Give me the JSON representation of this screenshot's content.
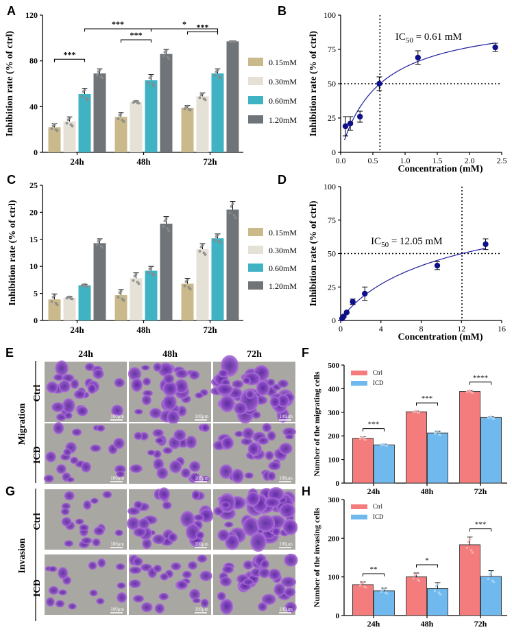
{
  "panels": {
    "A": "A",
    "B": "B",
    "C": "C",
    "D": "D",
    "E": "E",
    "F": "F",
    "G": "G",
    "H": "H"
  },
  "colors": {
    "c015": "#c9b98b",
    "c030": "#e6e1d6",
    "c060": "#3fb3c4",
    "c120": "#6f7478",
    "ctrl": "#f47c7c",
    "icd": "#6fb9ee",
    "curve": "#1a1a9c",
    "point": "#10108a"
  },
  "chart_data": [
    {
      "id": "A",
      "type": "bar",
      "ylabel": "Inhibition rate (% of ctrl)",
      "ylim": [
        0,
        120
      ],
      "yticks": [
        0,
        40,
        80,
        120
      ],
      "categories": [
        "24h",
        "48h",
        "72h"
      ],
      "series": [
        {
          "name": "0.15mM",
          "values": [
            22,
            31,
            39
          ],
          "err": [
            3,
            4,
            2
          ]
        },
        {
          "name": "0.30mM",
          "values": [
            27,
            44,
            49
          ],
          "err": [
            4,
            1,
            3
          ]
        },
        {
          "name": "0.60mM",
          "values": [
            51,
            63,
            69
          ],
          "err": [
            5,
            5,
            4
          ]
        },
        {
          "name": "1.20mM",
          "values": [
            69,
            86,
            97
          ],
          "err": [
            4,
            4,
            0
          ]
        }
      ],
      "sig": [
        {
          "level": 0,
          "a": [
            0,
            0
          ],
          "b": [
            0,
            2
          ],
          "label": "***"
        },
        {
          "level": 0,
          "a": [
            1,
            0
          ],
          "b": [
            1,
            2
          ],
          "label": "***"
        },
        {
          "level": 0,
          "a": [
            2,
            0
          ],
          "b": [
            2,
            2
          ],
          "label": "***"
        },
        {
          "level": 1,
          "a": [
            0,
            2
          ],
          "b": [
            1,
            2
          ],
          "label": "***"
        },
        {
          "level": 1,
          "a": [
            1,
            2
          ],
          "b": [
            2,
            2
          ],
          "label": "*"
        }
      ]
    },
    {
      "id": "B",
      "type": "scatter",
      "xlabel": "Concentration (mM)",
      "ylabel": "Inhibition rate (% of ctrl)",
      "xlim": [
        0,
        2.5
      ],
      "ylim": [
        0,
        100
      ],
      "xticks": [
        0.0,
        0.5,
        1.0,
        1.5,
        2.0,
        2.5
      ],
      "yticks": [
        0,
        25,
        50,
        75,
        100
      ],
      "x": [
        0.075,
        0.15,
        0.3,
        0.6,
        1.2,
        2.4
      ],
      "y": [
        19,
        21,
        26,
        50,
        69,
        76.5
      ],
      "err": [
        7,
        5,
        4,
        5,
        5,
        3
      ],
      "fit": {
        "top": 90,
        "ec50": 0.61,
        "hill": 1.0
      },
      "vline": 0.61,
      "hline": 50,
      "annotation": "IC",
      "annotation_sub": "50",
      "annotation_rest": " = 0.61 mM"
    },
    {
      "id": "C",
      "type": "bar",
      "ylabel": "Inhibition rate (% of ctrl)",
      "ylim": [
        0,
        25
      ],
      "yticks": [
        0,
        5,
        10,
        15,
        20,
        25
      ],
      "categories": [
        "24h",
        "48h",
        "72h"
      ],
      "series": [
        {
          "name": "0.15mM",
          "values": [
            3.9,
            4.7,
            6.8
          ],
          "err": [
            1,
            1,
            1
          ]
        },
        {
          "name": "0.30mM",
          "values": [
            4.2,
            7.8,
            13.2
          ],
          "err": [
            0.2,
            1,
            1
          ]
        },
        {
          "name": "0.60mM",
          "values": [
            6.5,
            9.2,
            15.2
          ],
          "err": [
            0.2,
            0.8,
            0.8
          ]
        },
        {
          "name": "1.20mM",
          "values": [
            14.3,
            17.9,
            20.5
          ],
          "err": [
            0.8,
            1.3,
            1.5
          ]
        }
      ],
      "sig": []
    },
    {
      "id": "D",
      "type": "scatter",
      "xlabel": "Concentration (mM)",
      "ylabel": "Inhibition rate (% of ctrl)",
      "xlim": [
        0,
        16
      ],
      "ylim": [
        0,
        100
      ],
      "xticks": [
        0,
        4,
        8,
        12,
        16
      ],
      "yticks": [
        0,
        25,
        50,
        75,
        100
      ],
      "x": [
        0.15,
        0.3,
        0.6,
        1.2,
        2.4,
        9.6,
        14.4
      ],
      "y": [
        1.5,
        3,
        6,
        14,
        20,
        41,
        57
      ],
      "err": [
        0.5,
        0.8,
        1,
        2,
        5,
        3,
        4
      ],
      "fit": {
        "top": 100,
        "ec50": 12.05,
        "hill": 0.9
      },
      "vline": 12.05,
      "hline": 50,
      "annotation": "IC",
      "annotation_sub": "50",
      "annotation_rest": " = 12.05 mM"
    },
    {
      "id": "F",
      "type": "bar",
      "ylabel": "Number of the migrating cells",
      "ylim": [
        0,
        500
      ],
      "yticks": [
        0,
        100,
        200,
        300,
        400,
        500
      ],
      "categories": [
        "24h",
        "48h",
        "72h"
      ],
      "series": [
        {
          "name": "Ctrl",
          "values": [
            190,
            302,
            388
          ],
          "err": [
            6,
            3,
            5
          ]
        },
        {
          "name": "ICD",
          "values": [
            162,
            212,
            278
          ],
          "err": [
            3,
            8,
            5
          ]
        }
      ],
      "sig": [
        {
          "label": "***"
        },
        {
          "label": "***"
        },
        {
          "label": "****"
        }
      ]
    },
    {
      "id": "H",
      "type": "bar",
      "ylabel": "Number of the invasing cells",
      "ylim": [
        0,
        300
      ],
      "yticks": [
        0,
        100,
        200,
        300
      ],
      "categories": [
        "24h",
        "48h",
        "72h"
      ],
      "series": [
        {
          "name": "Ctrl",
          "values": [
            80,
            100,
            183
          ],
          "err": [
            7,
            10,
            20
          ]
        },
        {
          "name": "ICD",
          "values": [
            64,
            70,
            101
          ],
          "err": [
            7,
            15,
            15
          ]
        }
      ],
      "sig": [
        {
          "label": "**"
        },
        {
          "label": "*"
        },
        {
          "label": "***"
        }
      ]
    }
  ],
  "micro": {
    "cols": [
      "24h",
      "48h",
      "72h"
    ],
    "migration": "Migration",
    "invasion": "Invasion",
    "ctrl": "Ctrl",
    "icd": "ICD",
    "scale": "100μm"
  }
}
